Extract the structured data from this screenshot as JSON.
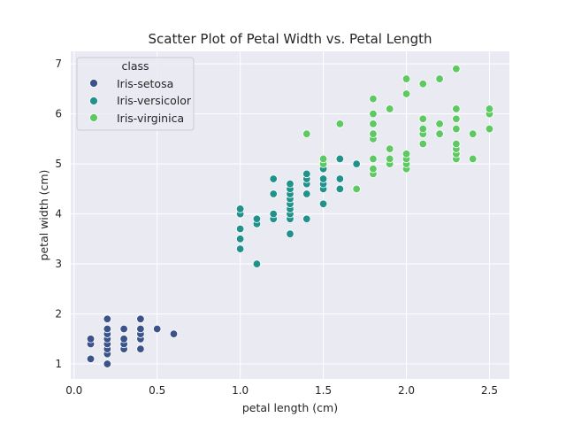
{
  "chart_data": {
    "type": "scatter",
    "title": "Scatter Plot of Petal Width vs. Petal Length",
    "xlabel": "petal length (cm)",
    "ylabel": "petal width (cm)",
    "xlim": [
      -0.02,
      2.62
    ],
    "ylim": [
      0.7,
      7.25
    ],
    "xticks": [
      "0.0",
      "0.5",
      "1.0",
      "1.5",
      "2.0",
      "2.5"
    ],
    "yticks": [
      "1",
      "2",
      "3",
      "4",
      "5",
      "6",
      "7"
    ],
    "grid": true,
    "legend": {
      "title": "class",
      "position": "top-left",
      "entries": [
        "Iris-setosa",
        "Iris-versicolor",
        "Iris-virginica"
      ]
    },
    "series": [
      {
        "name": "Iris-setosa",
        "color": "#3b528b",
        "points": [
          [
            0.1,
            1.1
          ],
          [
            0.1,
            1.4
          ],
          [
            0.1,
            1.5
          ],
          [
            0.2,
            1.0
          ],
          [
            0.2,
            1.2
          ],
          [
            0.2,
            1.3
          ],
          [
            0.2,
            1.4
          ],
          [
            0.2,
            1.5
          ],
          [
            0.2,
            1.6
          ],
          [
            0.2,
            1.7
          ],
          [
            0.2,
            1.9
          ],
          [
            0.3,
            1.3
          ],
          [
            0.3,
            1.4
          ],
          [
            0.3,
            1.5
          ],
          [
            0.3,
            1.7
          ],
          [
            0.4,
            1.3
          ],
          [
            0.4,
            1.5
          ],
          [
            0.4,
            1.6
          ],
          [
            0.4,
            1.7
          ],
          [
            0.4,
            1.9
          ],
          [
            0.5,
            1.7
          ],
          [
            0.6,
            1.6
          ]
        ]
      },
      {
        "name": "Iris-versicolor",
        "color": "#21918c",
        "points": [
          [
            1.0,
            3.3
          ],
          [
            1.0,
            3.5
          ],
          [
            1.0,
            3.7
          ],
          [
            1.0,
            4.0
          ],
          [
            1.0,
            4.1
          ],
          [
            1.1,
            3.0
          ],
          [
            1.1,
            3.8
          ],
          [
            1.1,
            3.9
          ],
          [
            1.2,
            3.9
          ],
          [
            1.2,
            4.0
          ],
          [
            1.2,
            4.4
          ],
          [
            1.2,
            4.7
          ],
          [
            1.3,
            3.6
          ],
          [
            1.3,
            3.9
          ],
          [
            1.3,
            4.0
          ],
          [
            1.3,
            4.1
          ],
          [
            1.3,
            4.2
          ],
          [
            1.3,
            4.3
          ],
          [
            1.3,
            4.4
          ],
          [
            1.3,
            4.5
          ],
          [
            1.3,
            4.6
          ],
          [
            1.4,
            3.9
          ],
          [
            1.4,
            4.4
          ],
          [
            1.4,
            4.6
          ],
          [
            1.4,
            4.7
          ],
          [
            1.4,
            4.8
          ],
          [
            1.5,
            4.2
          ],
          [
            1.5,
            4.5
          ],
          [
            1.5,
            4.6
          ],
          [
            1.5,
            4.7
          ],
          [
            1.5,
            4.9
          ],
          [
            1.6,
            4.5
          ],
          [
            1.6,
            4.7
          ],
          [
            1.6,
            5.1
          ],
          [
            1.7,
            5.0
          ]
        ]
      },
      {
        "name": "Iris-virginica",
        "color": "#5ec962",
        "points": [
          [
            1.4,
            5.6
          ],
          [
            1.5,
            5.0
          ],
          [
            1.5,
            5.1
          ],
          [
            1.6,
            5.8
          ],
          [
            1.7,
            4.5
          ],
          [
            1.8,
            4.8
          ],
          [
            1.8,
            4.9
          ],
          [
            1.8,
            5.1
          ],
          [
            1.8,
            5.5
          ],
          [
            1.8,
            5.6
          ],
          [
            1.8,
            5.8
          ],
          [
            1.8,
            6.0
          ],
          [
            1.8,
            6.3
          ],
          [
            1.9,
            5.0
          ],
          [
            1.9,
            5.1
          ],
          [
            1.9,
            5.3
          ],
          [
            1.9,
            6.1
          ],
          [
            2.0,
            4.9
          ],
          [
            2.0,
            5.0
          ],
          [
            2.0,
            5.1
          ],
          [
            2.0,
            5.2
          ],
          [
            2.0,
            6.4
          ],
          [
            2.0,
            6.7
          ],
          [
            2.1,
            5.4
          ],
          [
            2.1,
            5.6
          ],
          [
            2.1,
            5.7
          ],
          [
            2.1,
            5.9
          ],
          [
            2.1,
            6.6
          ],
          [
            2.2,
            5.6
          ],
          [
            2.2,
            5.8
          ],
          [
            2.2,
            6.7
          ],
          [
            2.3,
            5.1
          ],
          [
            2.3,
            5.2
          ],
          [
            2.3,
            5.3
          ],
          [
            2.3,
            5.4
          ],
          [
            2.3,
            5.7
          ],
          [
            2.3,
            5.9
          ],
          [
            2.3,
            6.1
          ],
          [
            2.3,
            6.9
          ],
          [
            2.4,
            5.1
          ],
          [
            2.4,
            5.6
          ],
          [
            2.5,
            5.7
          ],
          [
            2.5,
            6.0
          ],
          [
            2.5,
            6.1
          ]
        ]
      }
    ]
  }
}
